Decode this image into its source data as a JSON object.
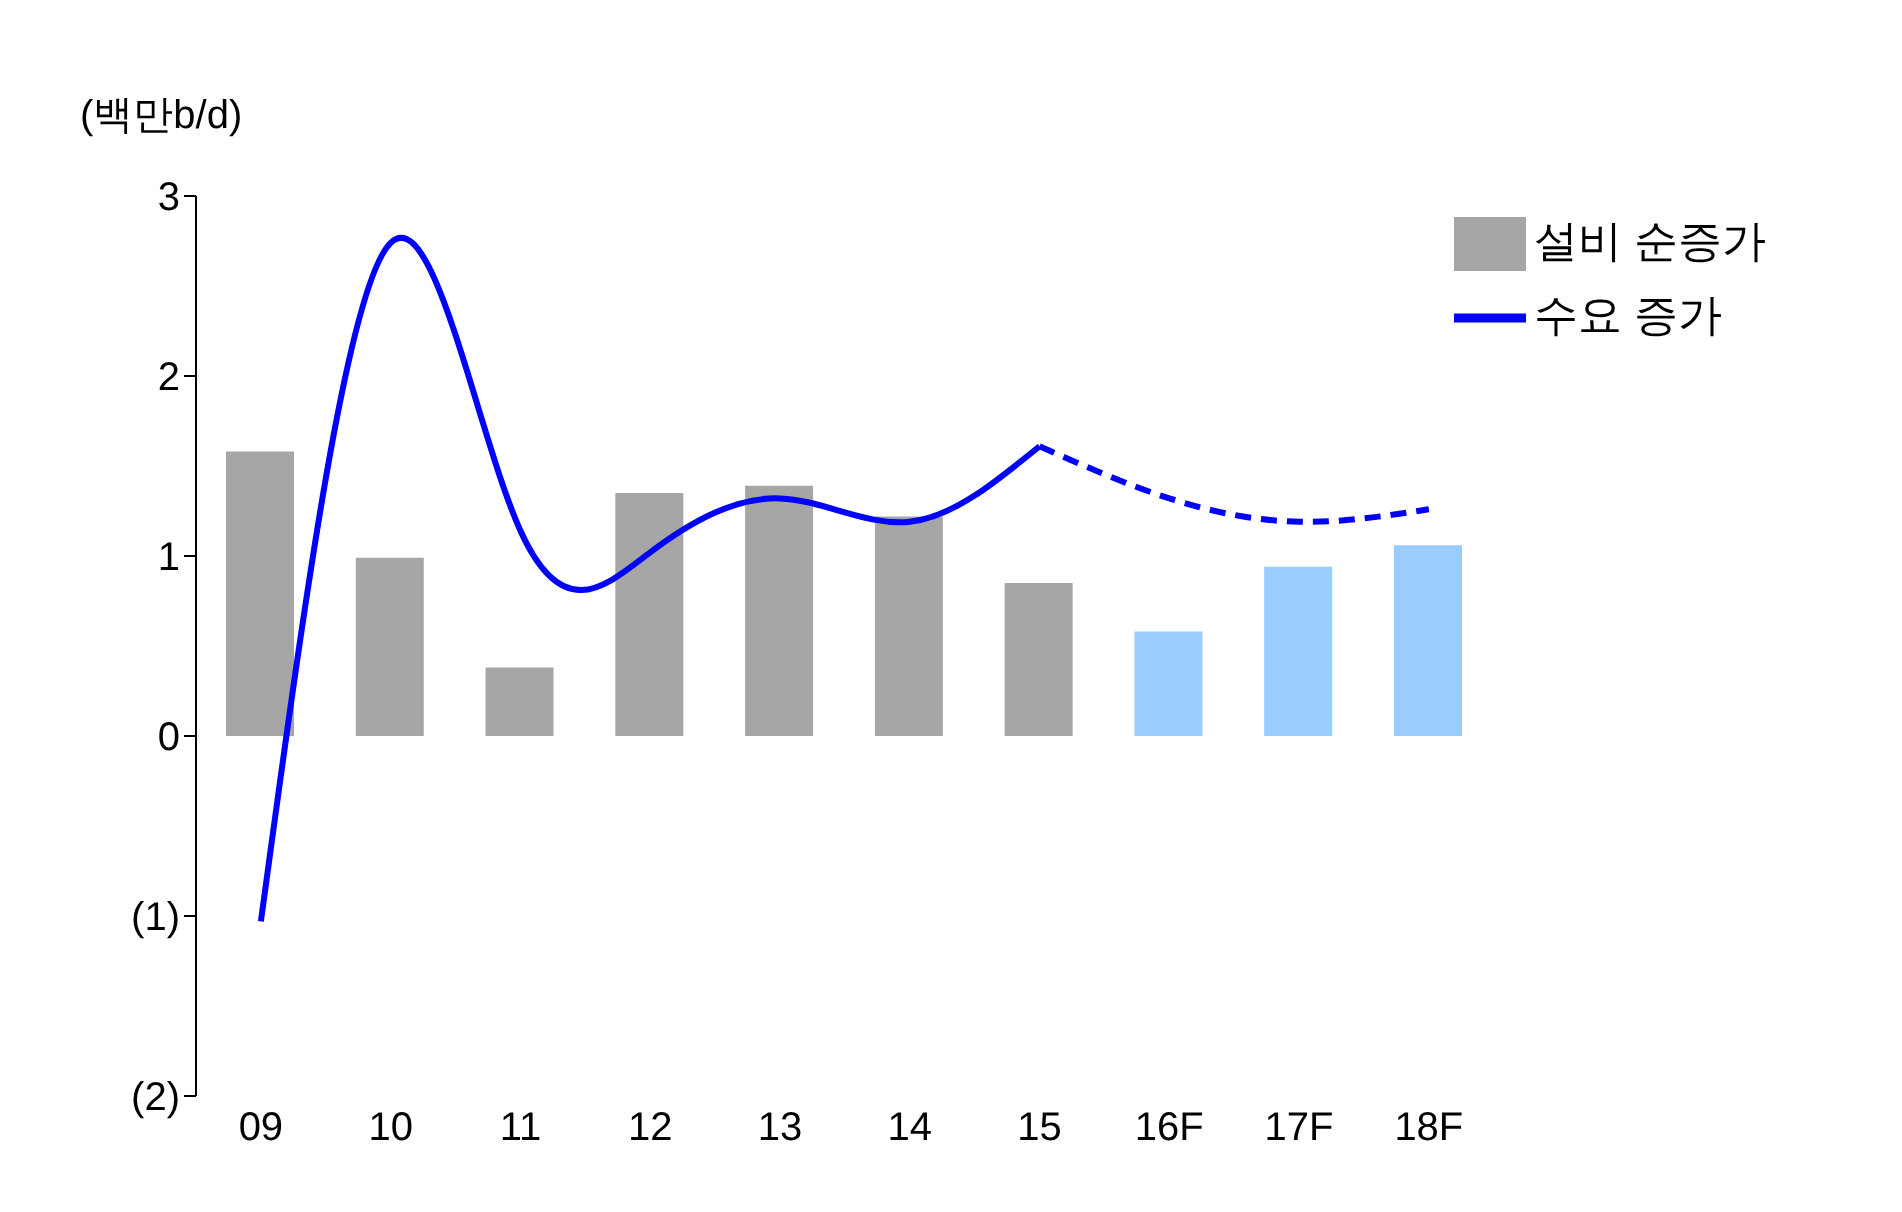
{
  "chart_data": {
    "type": "bar",
    "ylabel": "(백만b/d)",
    "categories": [
      "09",
      "10",
      "11",
      "12",
      "13",
      "14",
      "15",
      "16F",
      "17F",
      "18F"
    ],
    "series": [
      {
        "name": "설비 순증가",
        "color": "#a6a6a6",
        "colors": [
          "#a6a6a6",
          "#a6a6a6",
          "#a6a6a6",
          "#a6a6a6",
          "#a6a6a6",
          "#a6a6a6",
          "#a6a6a6",
          "#99ccff",
          "#99ccff",
          "#99ccff"
        ],
        "values": [
          1.58,
          0.99,
          0.38,
          1.35,
          1.39,
          1.22,
          0.85,
          0.58,
          0.94,
          1.06
        ]
      },
      {
        "type": "line",
        "name": "수요 증가",
        "color": "#0000ff",
        "line_style": "solid",
        "values": [
          -1.03,
          2.74,
          1.14,
          1.02,
          1.32,
          1.19,
          1.61,
          null,
          null,
          null
        ]
      },
      {
        "type": "line",
        "color": "#0000ff",
        "line_style": "dashed",
        "values": [
          null,
          null,
          null,
          null,
          null,
          null,
          1.61,
          1.32,
          1.19,
          1.26
        ]
      }
    ],
    "ylim": [
      -2,
      3
    ],
    "yticks": [
      {
        "value": -2,
        "label": "(2)"
      },
      {
        "value": -1,
        "label": "(1)"
      },
      0,
      1,
      2,
      3
    ],
    "legend": "top right",
    "grid": false
  }
}
